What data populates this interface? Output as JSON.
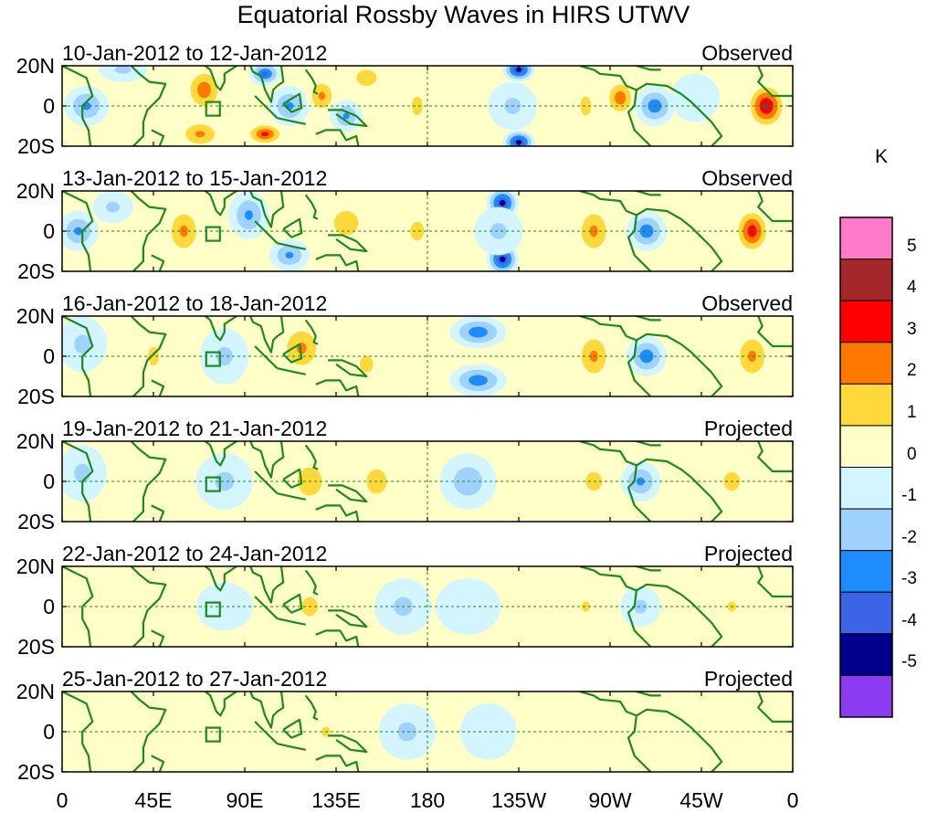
{
  "title": "Equatorial Rossby Waves in HIRS UTWV",
  "chart_data": {
    "type": "heatmap",
    "title": "Equatorial Rossby Waves in HIRS UTWV",
    "xlabel": "",
    "ylabel": "",
    "xlim": [
      0,
      360
    ],
    "ylim": [
      -20,
      20
    ],
    "x_ticks": [
      "0",
      "45E",
      "90E",
      "135E",
      "180",
      "135W",
      "90W",
      "45W",
      "0"
    ],
    "y_ticks": [
      "20N",
      "0",
      "20S"
    ],
    "colorbar": {
      "unit": "K",
      "levels": [
        "5",
        "4",
        "3",
        "2",
        "1",
        "0",
        "-1",
        "-2",
        "-3",
        "-4",
        "-5"
      ],
      "colors": [
        "#ff7ac8",
        "#a5262a",
        "#ff0000",
        "#ff7800",
        "#ffd83c",
        "#ffffc8",
        "#d2f5ff",
        "#a0d2ff",
        "#1e8cff",
        "#3c64e6",
        "#00008c",
        "#8c3cf0"
      ]
    },
    "panels": [
      {
        "label": "10-Jan-2012 to 12-Jan-2012",
        "status": "Observed",
        "blobs": [
          {
            "lon": 12,
            "lat": 0,
            "v": -2.5,
            "rx": 11,
            "ry": 10
          },
          {
            "lon": 30,
            "lat": 18,
            "v": -1.5,
            "rx": 12,
            "ry": 6
          },
          {
            "lon": 70,
            "lat": 8,
            "v": 3,
            "rx": 10,
            "ry": 12
          },
          {
            "lon": 68,
            "lat": -14,
            "v": 2.5,
            "rx": 12,
            "ry": 8
          },
          {
            "lon": 100,
            "lat": 16,
            "v": -3.5,
            "rx": 8,
            "ry": 6
          },
          {
            "lon": 100,
            "lat": -14,
            "v": 3.5,
            "rx": 10,
            "ry": 6
          },
          {
            "lon": 112,
            "lat": 0,
            "v": -2.5,
            "rx": 10,
            "ry": 10
          },
          {
            "lon": 128,
            "lat": 5,
            "v": 2.5,
            "rx": 8,
            "ry": 10
          },
          {
            "lon": 140,
            "lat": -5,
            "v": -2.5,
            "rx": 8,
            "ry": 8
          },
          {
            "lon": 150,
            "lat": 14,
            "v": 2,
            "rx": 10,
            "ry": 8
          },
          {
            "lon": 175,
            "lat": 0,
            "v": 1.5,
            "rx": 8,
            "ry": 14
          },
          {
            "lon": 225,
            "lat": 18,
            "v": -4.5,
            "rx": 8,
            "ry": 6
          },
          {
            "lon": 225,
            "lat": -18,
            "v": -4.5,
            "rx": 8,
            "ry": 6
          },
          {
            "lon": 222,
            "lat": 0,
            "v": -1.5,
            "rx": 12,
            "ry": 12
          },
          {
            "lon": 258,
            "lat": 0,
            "v": 1.5,
            "rx": 8,
            "ry": 14
          },
          {
            "lon": 275,
            "lat": 4,
            "v": 3,
            "rx": 8,
            "ry": 10
          },
          {
            "lon": 292,
            "lat": 0,
            "v": -3,
            "rx": 10,
            "ry": 10
          },
          {
            "lon": 312,
            "lat": 4,
            "v": -1,
            "rx": 12,
            "ry": 12
          },
          {
            "lon": 347,
            "lat": 0,
            "v": 4.5,
            "rx": 10,
            "ry": 12
          }
        ]
      },
      {
        "label": "13-Jan-2012 to 15-Jan-2012",
        "status": "Observed",
        "blobs": [
          {
            "lon": 8,
            "lat": 0,
            "v": -2.5,
            "rx": 10,
            "ry": 10
          },
          {
            "lon": 25,
            "lat": 12,
            "v": -1.5,
            "rx": 10,
            "ry": 8
          },
          {
            "lon": 60,
            "lat": 0,
            "v": 2.5,
            "rx": 10,
            "ry": 14
          },
          {
            "lon": 92,
            "lat": 8,
            "v": -2.5,
            "rx": 10,
            "ry": 12
          },
          {
            "lon": 112,
            "lat": -12,
            "v": -2.5,
            "rx": 10,
            "ry": 8
          },
          {
            "lon": 140,
            "lat": 4,
            "v": 2,
            "rx": 12,
            "ry": 12
          },
          {
            "lon": 175,
            "lat": 0,
            "v": 1.5,
            "rx": 10,
            "ry": 14
          },
          {
            "lon": 217,
            "lat": 14,
            "v": -4.5,
            "rx": 8,
            "ry": 8
          },
          {
            "lon": 217,
            "lat": -14,
            "v": -4.5,
            "rx": 8,
            "ry": 8
          },
          {
            "lon": 215,
            "lat": 0,
            "v": -1.5,
            "rx": 12,
            "ry": 12
          },
          {
            "lon": 262,
            "lat": 0,
            "v": 2.5,
            "rx": 10,
            "ry": 14
          },
          {
            "lon": 288,
            "lat": 0,
            "v": -3,
            "rx": 10,
            "ry": 10
          },
          {
            "lon": 340,
            "lat": 0,
            "v": 4,
            "rx": 9,
            "ry": 12
          }
        ]
      },
      {
        "label": "16-Jan-2012 to 18-Jan-2012",
        "status": "Observed",
        "blobs": [
          {
            "lon": 10,
            "lat": 6,
            "v": -1.5,
            "rx": 12,
            "ry": 14
          },
          {
            "lon": 45,
            "lat": 0,
            "v": 1.5,
            "rx": 8,
            "ry": 14
          },
          {
            "lon": 80,
            "lat": 0,
            "v": -1.5,
            "rx": 12,
            "ry": 14
          },
          {
            "lon": 118,
            "lat": 4,
            "v": 2.5,
            "rx": 12,
            "ry": 14
          },
          {
            "lon": 150,
            "lat": -4,
            "v": 1.5,
            "rx": 10,
            "ry": 12
          },
          {
            "lon": 205,
            "lat": 12,
            "v": -3,
            "rx": 14,
            "ry": 8
          },
          {
            "lon": 205,
            "lat": -12,
            "v": -3,
            "rx": 14,
            "ry": 8
          },
          {
            "lon": 262,
            "lat": 0,
            "v": 2.5,
            "rx": 10,
            "ry": 14
          },
          {
            "lon": 288,
            "lat": 0,
            "v": -3,
            "rx": 10,
            "ry": 10
          },
          {
            "lon": 340,
            "lat": 0,
            "v": 2.5,
            "rx": 10,
            "ry": 14
          }
        ]
      },
      {
        "label": "19-Jan-2012 to 21-Jan-2012",
        "status": "Projected",
        "blobs": [
          {
            "lon": 10,
            "lat": 4,
            "v": -1.5,
            "rx": 12,
            "ry": 14
          },
          {
            "lon": 80,
            "lat": 0,
            "v": -1.5,
            "rx": 14,
            "ry": 14
          },
          {
            "lon": 122,
            "lat": 0,
            "v": 2,
            "rx": 12,
            "ry": 14
          },
          {
            "lon": 155,
            "lat": 0,
            "v": 2,
            "rx": 10,
            "ry": 12
          },
          {
            "lon": 200,
            "lat": 0,
            "v": -2,
            "rx": 14,
            "ry": 14
          },
          {
            "lon": 262,
            "lat": 0,
            "v": 1.5,
            "rx": 12,
            "ry": 14
          },
          {
            "lon": 285,
            "lat": 0,
            "v": -2.5,
            "rx": 10,
            "ry": 10
          },
          {
            "lon": 330,
            "lat": 0,
            "v": 1.5,
            "rx": 12,
            "ry": 14
          }
        ]
      },
      {
        "label": "22-Jan-2012 to 24-Jan-2012",
        "status": "Projected",
        "blobs": [
          {
            "lon": 20,
            "lat": 0,
            "v": 0.5,
            "rx": 16,
            "ry": 14
          },
          {
            "lon": 80,
            "lat": 0,
            "v": -1,
            "rx": 14,
            "ry": 12
          },
          {
            "lon": 122,
            "lat": 0,
            "v": 1.5,
            "rx": 12,
            "ry": 14
          },
          {
            "lon": 168,
            "lat": 0,
            "v": -1.5,
            "rx": 14,
            "ry": 14
          },
          {
            "lon": 200,
            "lat": 0,
            "v": -1,
            "rx": 16,
            "ry": 14
          },
          {
            "lon": 258,
            "lat": 0,
            "v": 1.2,
            "rx": 12,
            "ry": 14
          },
          {
            "lon": 285,
            "lat": 0,
            "v": -1.5,
            "rx": 10,
            "ry": 10
          },
          {
            "lon": 330,
            "lat": 0,
            "v": 1.2,
            "rx": 12,
            "ry": 14
          }
        ]
      },
      {
        "label": "25-Jan-2012 to 27-Jan-2012",
        "status": "Projected",
        "blobs": [
          {
            "lon": 20,
            "lat": 0,
            "v": 0.5,
            "rx": 16,
            "ry": 14
          },
          {
            "lon": 75,
            "lat": 0,
            "v": 0.5,
            "rx": 16,
            "ry": 14
          },
          {
            "lon": 130,
            "lat": 0,
            "v": 1.2,
            "rx": 12,
            "ry": 14
          },
          {
            "lon": 170,
            "lat": 0,
            "v": -1.5,
            "rx": 14,
            "ry": 14
          },
          {
            "lon": 210,
            "lat": 0,
            "v": -1,
            "rx": 14,
            "ry": 14
          },
          {
            "lon": 262,
            "lat": 0,
            "v": 0.6,
            "rx": 14,
            "ry": 14
          },
          {
            "lon": 320,
            "lat": 0,
            "v": 0.6,
            "rx": 14,
            "ry": 14
          }
        ]
      }
    ]
  }
}
